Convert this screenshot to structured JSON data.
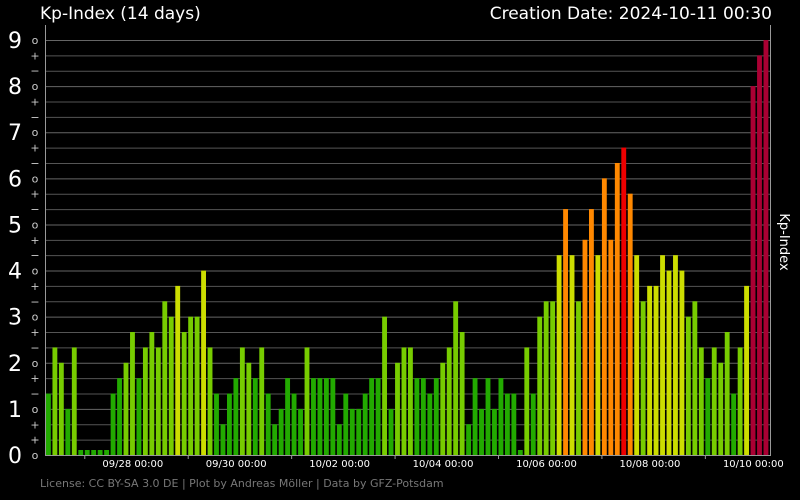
{
  "header": {
    "title": "Kp-Index (14 days)",
    "creation_date": "Creation Date: 2024-10-11 00:30"
  },
  "footer": {
    "license": "License: CC BY-SA 3.0 DE | Plot by Andreas Möller | Data by GFZ-Potsdam"
  },
  "chart_data": {
    "type": "bar",
    "title": "Kp-Index (14 days)",
    "xlabel": "",
    "ylabel": "Kp-Index",
    "ylim": [
      0,
      9
    ],
    "grid": true,
    "y_major_ticks": [
      "0",
      "1",
      "2",
      "3",
      "4",
      "5",
      "6",
      "7",
      "8",
      "9"
    ],
    "y_minor_ticks": [
      "+",
      "o",
      "−"
    ],
    "x_tick_labels": [
      "09/28 00:00",
      "09/30 00:00",
      "10/02 00:00",
      "10/04 00:00",
      "10/06 00:00",
      "10/08 00:00",
      "10/10 00:00"
    ],
    "colors": {
      "low": "#22aa00",
      "mid": "#77cc00",
      "elevated": "#ccdd00",
      "storm": "#ff8800",
      "strong": "#ee0000",
      "severe": "#aa0033"
    },
    "values": [
      1.333,
      2.333,
      2.0,
      1.0,
      2.333,
      0.0,
      0.0,
      0.0,
      0.0,
      0.0,
      1.333,
      1.667,
      2.0,
      2.667,
      1.667,
      2.333,
      2.667,
      2.333,
      3.333,
      3.0,
      3.667,
      2.667,
      3.0,
      3.0,
      4.0,
      2.333,
      1.333,
      0.667,
      1.333,
      1.667,
      2.333,
      2.0,
      1.667,
      2.333,
      1.333,
      0.667,
      1.0,
      1.667,
      1.333,
      1.0,
      2.333,
      1.667,
      1.667,
      1.667,
      1.667,
      0.667,
      1.333,
      1.0,
      1.0,
      1.333,
      1.667,
      1.667,
      3.0,
      1.0,
      2.0,
      2.333,
      2.333,
      1.667,
      1.667,
      1.333,
      1.667,
      2.0,
      2.333,
      3.333,
      2.667,
      0.667,
      1.667,
      1.0,
      1.667,
      1.0,
      1.667,
      1.333,
      1.333,
      0.0,
      2.333,
      1.333,
      3.0,
      3.333,
      3.333,
      4.333,
      5.333,
      4.333,
      3.333,
      4.667,
      5.333,
      4.333,
      6.0,
      4.667,
      6.333,
      6.667,
      5.667,
      4.333,
      3.333,
      3.667,
      3.667,
      4.333,
      4.0,
      4.333,
      4.0,
      3.0,
      3.333,
      2.333,
      1.667,
      2.333,
      2.0,
      2.667,
      1.333,
      2.333,
      3.667,
      8.0,
      8.667,
      9.0
    ]
  }
}
